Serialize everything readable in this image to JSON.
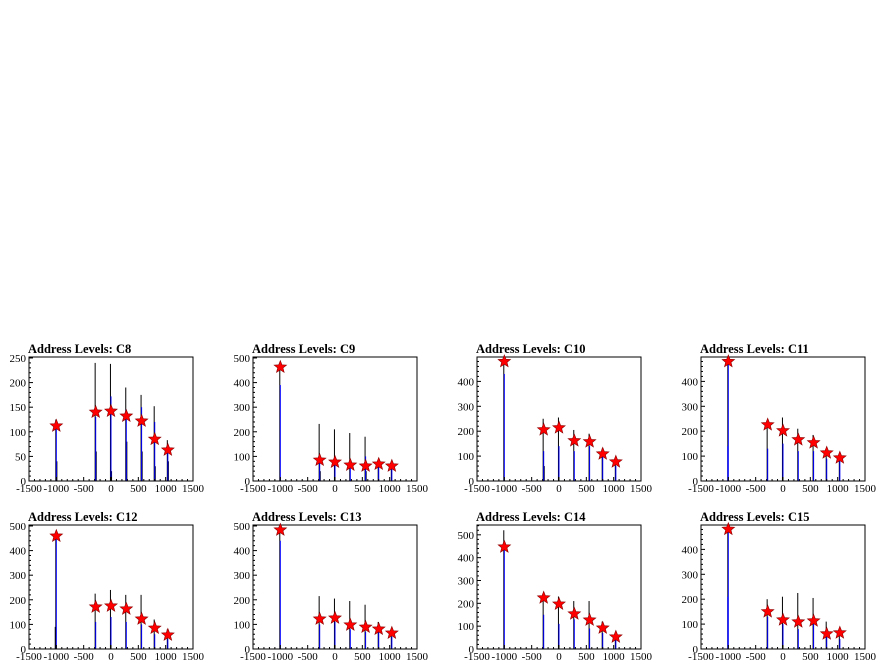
{
  "chart_data": [
    {
      "type": "bar",
      "title": "Address Levels: C8",
      "xlim": [
        -1500,
        1500
      ],
      "ylim": [
        0,
        252
      ],
      "xticks": [
        "-1500",
        "-1000",
        "-500",
        "0",
        "500",
        "1000",
        "1500"
      ],
      "yticks": [
        "0",
        "50",
        "100",
        "150",
        "200",
        "250"
      ],
      "series": [
        {
          "color": "#000000",
          "x": [
            -1010,
            -990,
            -290,
            -270,
            -10,
            10,
            270,
            290,
            550,
            570,
            790,
            810,
            1030,
            1050
          ],
          "values": [
            125,
            40,
            240,
            60,
            238,
            20,
            190,
            80,
            175,
            60,
            152,
            30,
            83,
            40
          ]
        },
        {
          "color": "#0000ff",
          "x": [
            -1000,
            -280,
            0,
            280,
            560,
            800,
            1040
          ],
          "values": [
            112,
            130,
            172,
            145,
            150,
            120,
            60
          ]
        }
      ],
      "markers": {
        "color": "#ff0000",
        "shape": "star",
        "x": [
          -1000,
          -280,
          0,
          280,
          560,
          800,
          1040
        ],
        "y": [
          112,
          140,
          142,
          132,
          122,
          85,
          63
        ]
      }
    },
    {
      "type": "bar",
      "title": "Address Levels: C9",
      "xlim": [
        -1500,
        1500
      ],
      "ylim": [
        0,
        504
      ],
      "xticks": [
        "-1500",
        "-1000",
        "-500",
        "0",
        "500",
        "1000",
        "1500"
      ],
      "yticks": [
        "0",
        "100",
        "200",
        "300",
        "400",
        "500"
      ],
      "series": [
        {
          "color": "#000000",
          "x": [
            -1010,
            -290,
            -270,
            -10,
            270,
            550,
            570,
            790,
            1030
          ],
          "values": [
            463,
            232,
            40,
            210,
            195,
            180,
            40,
            75,
            65
          ]
        },
        {
          "color": "#0000ff",
          "x": [
            -1000,
            -280,
            0,
            280,
            560,
            800,
            1040
          ],
          "values": [
            390,
            90,
            100,
            80,
            100,
            60,
            55
          ]
        }
      ],
      "markers": {
        "color": "#ff0000",
        "shape": "star",
        "x": [
          -1000,
          -280,
          0,
          280,
          560,
          800,
          1040
        ],
        "y": [
          463,
          85,
          77,
          65,
          61,
          69,
          61
        ]
      }
    },
    {
      "type": "bar",
      "title": "Address Levels: C10",
      "xlim": [
        -1500,
        1500
      ],
      "ylim": [
        0,
        498
      ],
      "xticks": [
        "-1500",
        "-1000",
        "-500",
        "0",
        "500",
        "1000",
        "1500"
      ],
      "yticks": [
        "0",
        "100",
        "200",
        "300",
        "400"
      ],
      "series": [
        {
          "color": "#000000",
          "x": [
            -1010,
            -290,
            -270,
            -10,
            270,
            550,
            790,
            1030
          ],
          "values": [
            480,
            250,
            60,
            255,
            205,
            190,
            130,
            90
          ]
        },
        {
          "color": "#0000ff",
          "x": [
            -1000,
            -280,
            0,
            280,
            560,
            800,
            1040
          ],
          "values": [
            430,
            120,
            140,
            120,
            140,
            100,
            60
          ]
        }
      ],
      "markers": {
        "color": "#ff0000",
        "shape": "star",
        "x": [
          -1000,
          -280,
          0,
          280,
          560,
          800,
          1040
        ],
        "y": [
          480,
          206,
          214,
          162,
          158,
          109,
          77
        ]
      }
    },
    {
      "type": "bar",
      "title": "Address Levels: C11",
      "xlim": [
        -1500,
        1500
      ],
      "ylim": [
        0,
        498
      ],
      "xticks": [
        "-1500",
        "-1000",
        "-500",
        "0",
        "500",
        "1000",
        "1500"
      ],
      "yticks": [
        "0",
        "100",
        "200",
        "300",
        "400"
      ],
      "series": [
        {
          "color": "#000000",
          "x": [
            -1010,
            -290,
            -10,
            270,
            550,
            790,
            1030
          ],
          "values": [
            480,
            245,
            255,
            210,
            185,
            130,
            105
          ]
        },
        {
          "color": "#0000ff",
          "x": [
            -1010,
            -1000,
            -280,
            0,
            280,
            560,
            800,
            1040
          ],
          "values": [
            140,
            470,
            130,
            150,
            120,
            120,
            90,
            80
          ]
        }
      ],
      "markers": {
        "color": "#ff0000",
        "shape": "star",
        "x": [
          -1000,
          -280,
          0,
          280,
          560,
          800,
          1040
        ],
        "y": [
          480,
          226,
          202,
          166,
          154,
          113,
          93
        ]
      }
    },
    {
      "type": "bar",
      "title": "Address Levels: C12",
      "xlim": [
        -1500,
        1500
      ],
      "ylim": [
        0,
        504
      ],
      "xticks": [
        "-1500",
        "-1000",
        "-500",
        "0",
        "500",
        "1000",
        "1500"
      ],
      "yticks": [
        "0",
        "100",
        "200",
        "300",
        "400",
        "500"
      ],
      "series": [
        {
          "color": "#000000",
          "x": [
            -1020,
            -1010,
            -290,
            -10,
            270,
            550,
            790,
            1030
          ],
          "values": [
            90,
            459,
            225,
            240,
            220,
            220,
            120,
            80
          ]
        },
        {
          "color": "#0000ff",
          "x": [
            -1000,
            -280,
            0,
            280,
            560,
            800,
            1040
          ],
          "values": [
            459,
            110,
            130,
            110,
            100,
            60,
            40
          ]
        }
      ],
      "markers": {
        "color": "#ff0000",
        "shape": "star",
        "x": [
          -1000,
          -280,
          0,
          280,
          560,
          800,
          1040
        ],
        "y": [
          459,
          171,
          175,
          163,
          122,
          85,
          57
        ]
      }
    },
    {
      "type": "bar",
      "title": "Address Levels: C13",
      "xlim": [
        -1500,
        1500
      ],
      "ylim": [
        0,
        504
      ],
      "xticks": [
        "-1500",
        "-1000",
        "-500",
        "0",
        "500",
        "1000",
        "1500"
      ],
      "yticks": [
        "0",
        "100",
        "200",
        "300",
        "400",
        "500"
      ],
      "series": [
        {
          "color": "#000000",
          "x": [
            -1010,
            -290,
            -10,
            270,
            550,
            790,
            1030
          ],
          "values": [
            484,
            215,
            205,
            195,
            180,
            110,
            80
          ]
        },
        {
          "color": "#0000ff",
          "x": [
            -1000,
            -280,
            0,
            280,
            560,
            800,
            1040
          ],
          "values": [
            440,
            100,
            110,
            80,
            70,
            70,
            50
          ]
        }
      ],
      "markers": {
        "color": "#ff0000",
        "shape": "star",
        "x": [
          -1000,
          -280,
          0,
          280,
          560,
          800,
          1040
        ],
        "y": [
          484,
          122,
          126,
          98,
          89,
          81,
          65
        ]
      }
    },
    {
      "type": "bar",
      "title": "Address Levels: C14",
      "xlim": [
        -1500,
        1500
      ],
      "ylim": [
        0,
        543
      ],
      "xticks": [
        "-1500",
        "-1000",
        "-500",
        "0",
        "500",
        "1000",
        "1500"
      ],
      "yticks": [
        "0",
        "100",
        "200",
        "300",
        "400",
        "500"
      ],
      "series": [
        {
          "color": "#000000",
          "x": [
            -1010,
            -290,
            -10,
            270,
            550,
            790,
            1030
          ],
          "values": [
            520,
            230,
            230,
            210,
            210,
            120,
            70
          ]
        },
        {
          "color": "#0000ff",
          "x": [
            -1000,
            -280,
            0,
            280,
            560,
            800,
            1040
          ],
          "values": [
            450,
            150,
            110,
            130,
            90,
            70,
            40
          ]
        }
      ],
      "markers": {
        "color": "#ff0000",
        "shape": "star",
        "x": [
          -1000,
          -280,
          0,
          280,
          560,
          800,
          1040
        ],
        "y": [
          447,
          224,
          197,
          154,
          127,
          92,
          53
        ]
      }
    },
    {
      "type": "bar",
      "title": "Address Levels: C15",
      "xlim": [
        -1500,
        1500
      ],
      "ylim": [
        0,
        498
      ],
      "xticks": [
        "-1500",
        "-1000",
        "-500",
        "0",
        "500",
        "1000",
        "1500"
      ],
      "yticks": [
        "0",
        "100",
        "200",
        "300",
        "400"
      ],
      "series": [
        {
          "color": "#000000",
          "x": [
            -1010,
            -290,
            -10,
            270,
            550,
            790,
            1030
          ],
          "values": [
            481,
            200,
            210,
            225,
            205,
            110,
            75
          ]
        },
        {
          "color": "#0000ff",
          "x": [
            -1010,
            -1000,
            -280,
            0,
            280,
            560,
            800,
            1040
          ],
          "values": [
            210,
            481,
            130,
            100,
            80,
            100,
            50,
            40
          ]
        }
      ],
      "markers": {
        "color": "#ff0000",
        "shape": "star",
        "x": [
          -1000,
          -280,
          0,
          280,
          560,
          800,
          1040
        ],
        "y": [
          481,
          150,
          117,
          109,
          113,
          61,
          65
        ]
      }
    }
  ]
}
